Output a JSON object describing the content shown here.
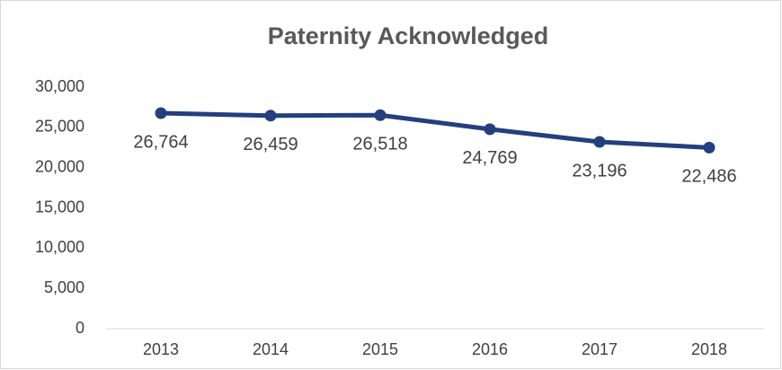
{
  "chart_data": {
    "type": "line",
    "title": "Paternity Acknowledged",
    "categories": [
      "2013",
      "2014",
      "2015",
      "2016",
      "2017",
      "2018"
    ],
    "values": [
      26764,
      26459,
      26518,
      24769,
      23196,
      22486
    ],
    "value_labels": [
      "26,764",
      "26,459",
      "26,518",
      "24,769",
      "23,196",
      "22,486"
    ],
    "color": "#233f7e",
    "ylim": [
      0,
      30000
    ],
    "yticks": [
      0,
      {
        "value": 5000,
        "label": "5,000"
      },
      {
        "value": 10000,
        "label": "10,000"
      },
      {
        "value": 15000,
        "label": "15,000"
      },
      {
        "value": 20000,
        "label": "20,000"
      },
      {
        "value": 25000,
        "label": "25,000"
      },
      {
        "value": 30000,
        "label": "30,000"
      }
    ],
    "grid": false
  }
}
